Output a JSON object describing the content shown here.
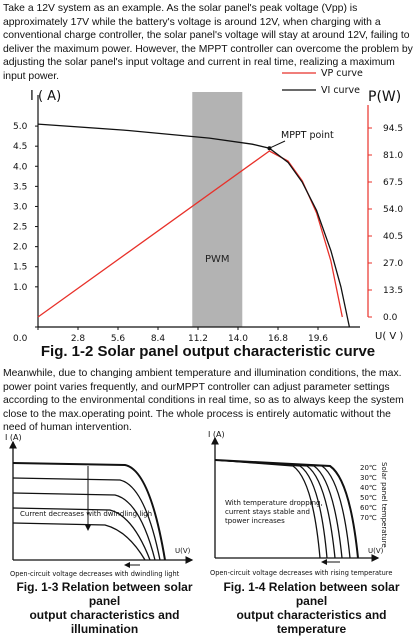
{
  "paragraphs": [
    "Take a 12V system as an example. As the solar panel's peak voltage (Vpp) is approximately 17V while the battery's voltage is around 12V, when charging with a conventional charge controller, the solar panel's voltage will stay at around 12V, failing to deliver the maximum power. However, the MPPT controller can overcome the problem by adjusting the solar panel's input voltage and current in real time, realizing a maximum input power.",
    "Meanwhile, due to changing ambient temperature and illumination conditions, the max. power point varies frequently, and ourMPPT controller can adjust parameter settings according to the environmental conditions in real time, so as to always keep the system close to the max.operating point. The whole process is entirely automatic without the need of human intervention."
  ],
  "chart_data": {
    "type": "line",
    "caption": "Fig. 1-2 Solar panel output characteristic curve",
    "x_label": "U( V )",
    "y_label": "I ( A)",
    "y2_label": "P(W)",
    "xlim": [
      0,
      22.4
    ],
    "ylim": [
      0,
      5.5
    ],
    "y2lim": [
      0,
      104
    ],
    "xticks": [
      {
        "value": 0,
        "label": "0.0"
      },
      2.8,
      5.6,
      8.4,
      11.2,
      {
        "value": 14,
        "label": "14.0"
      },
      16.8,
      19.6
    ],
    "yticks": [
      {
        "value": 0,
        "label": "0.0"
      },
      {
        "value": 1,
        "label": "1.0"
      },
      1.5,
      {
        "value": 2,
        "label": "2.0"
      },
      2.5,
      {
        "value": 3,
        "label": "3.0"
      },
      3.5,
      {
        "value": 4,
        "label": "4.0"
      },
      4.5,
      {
        "value": 5,
        "label": "5.0"
      }
    ],
    "y2ticks": [
      {
        "value": 0,
        "label": "0.0"
      },
      13.5,
      {
        "value": 27,
        "label": "27.0"
      },
      40.5,
      {
        "value": 54,
        "label": "54.0"
      },
      67.5,
      {
        "value": 81,
        "label": "81.0"
      },
      94.5
    ],
    "band": {
      "label": "PWM",
      "range": [
        10.8,
        14.3
      ]
    },
    "annotation": {
      "text": "MPPT point",
      "x": 16.2,
      "y": 4.45
    },
    "series": [
      {
        "name": "VP curve",
        "color": "#e8312a",
        "axis": "y2",
        "x": [
          0,
          16.2,
          17.5,
          18.5,
          19.5,
          20.5,
          21.3
        ],
        "values": [
          0,
          83,
          78,
          68,
          52,
          28,
          0
        ]
      },
      {
        "name": "VI curve",
        "color": "#111111",
        "x": [
          0,
          6,
          12,
          15,
          16.2,
          17.5,
          18.5,
          19.5,
          20.5,
          21.2,
          21.8
        ],
        "values": [
          5.05,
          4.9,
          4.7,
          4.55,
          4.45,
          4.1,
          3.6,
          2.9,
          1.9,
          1.0,
          0
        ]
      }
    ]
  },
  "figure3": {
    "y_label": "I (A)",
    "x_label": "U(V)",
    "note": "Current decreases with dwindling ligh",
    "bottom_note": "Open-circuit voltage decreases with dwindling light",
    "caption": [
      "Fig. 1-3 Relation between solar panel",
      "output characteristics and illumination"
    ]
  },
  "figure4": {
    "y_label": "I (A)",
    "x_label": "U(V)",
    "note": [
      "With temperature dropping,",
      "current stays stable and",
      "tpower increases"
    ],
    "temperatures": [
      "20℃",
      "30℃",
      "40℃",
      "50℃",
      "60℃",
      "70℃"
    ],
    "side_label": "Solar panel temperature",
    "bottom_note": "Open-circuit voltage decreases with rising temperature",
    "caption": [
      "Fig. 1-4 Relation between solar panel",
      "output characteristics and temperature"
    ]
  }
}
